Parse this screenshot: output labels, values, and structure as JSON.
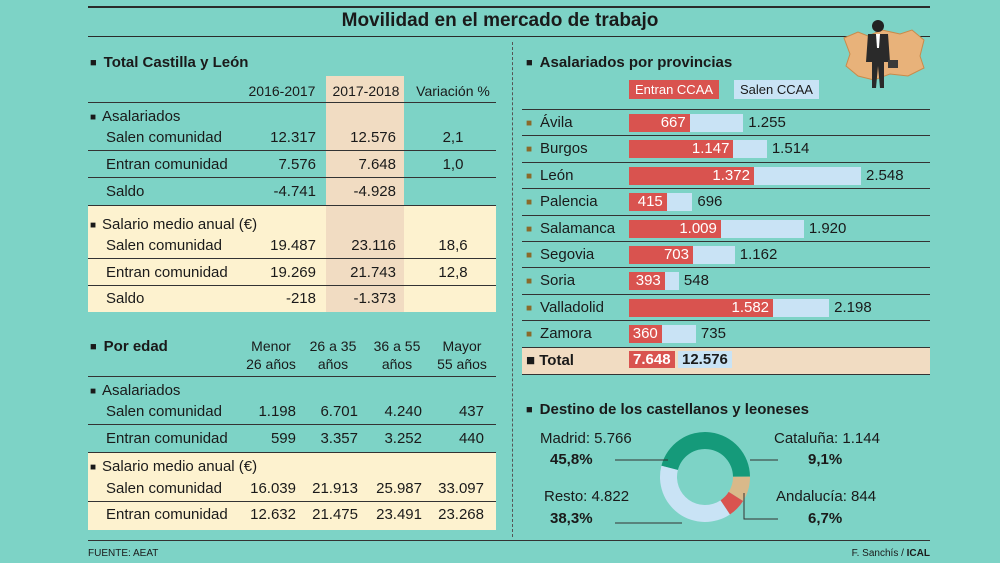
{
  "title": "Movilidad en el mercado de trabajo",
  "left": {
    "total_section": {
      "title": "Total Castilla y León",
      "col_headers": [
        "2016-2017",
        "2017-2018",
        "Variación %"
      ],
      "group1": {
        "label": "Asalariados",
        "rows": [
          {
            "label": "Salen comunidad",
            "v1": "12.317",
            "v2": "12.576",
            "v3": "2,1"
          },
          {
            "label": "Entran comunidad",
            "v1": "7.576",
            "v2": "7.648",
            "v3": "1,0"
          },
          {
            "label": "Saldo",
            "v1": "-4.741",
            "v2": "-4.928",
            "v3": ""
          }
        ]
      },
      "group2": {
        "label": "Salario medio anual (€)",
        "rows": [
          {
            "label": "Salen comunidad",
            "v1": "19.487",
            "v2": "23.116",
            "v3": "18,6"
          },
          {
            "label": "Entran comunidad",
            "v1": "19.269",
            "v2": "21.743",
            "v3": "12,8"
          },
          {
            "label": "Saldo",
            "v1": "-218",
            "v2": "-1.373",
            "v3": ""
          }
        ]
      }
    },
    "edad_section": {
      "title": "Por edad",
      "col_headers": [
        {
          "l1": "Menor",
          "l2": "26 años"
        },
        {
          "l1": "26 a 35",
          "l2": "años"
        },
        {
          "l1": "36 a 55",
          "l2": "años"
        },
        {
          "l1": "Mayor",
          "l2": "55 años"
        }
      ],
      "group1": {
        "label": "Asalariados",
        "rows": [
          {
            "label": "Salen comunidad",
            "v": [
              "1.198",
              "6.701",
              "4.240",
              "437"
            ]
          },
          {
            "label": "Entran comunidad",
            "v": [
              "599",
              "3.357",
              "3.252",
              "440"
            ]
          }
        ]
      },
      "group2": {
        "label": "Salario medio anual (€)",
        "rows": [
          {
            "label": "Salen comunidad",
            "v": [
              "16.039",
              "21.913",
              "25.987",
              "33.097"
            ]
          },
          {
            "label": "Entran comunidad",
            "v": [
              "12.632",
              "21.475",
              "23.491",
              "23.268"
            ]
          }
        ]
      }
    }
  },
  "right": {
    "provincias_title": "Asalariados por provincias",
    "legend_entran": "Entran CCAA",
    "legend_salen": "Salen CCAA",
    "total_label": "Total",
    "total_entran": "7.648",
    "total_salen": "12.576",
    "destino_title": "Destino de los castellanos y leoneses",
    "donut_labels": {
      "madrid": "Madrid: 5.766",
      "madrid_pct": "45,8%",
      "cataluna": "Cataluña: 1.144",
      "cataluna_pct": "9,1%",
      "resto": "Resto: 4.822",
      "resto_pct": "38,3%",
      "andalucia": "Andalucía: 844",
      "andalucia_pct": "6,7%"
    }
  },
  "chart_data": [
    {
      "type": "bar",
      "title": "Asalariados por provincias",
      "categories": [
        "Ávila",
        "Burgos",
        "León",
        "Palencia",
        "Salamanca",
        "Segovia",
        "Soria",
        "Valladolid",
        "Zamora"
      ],
      "series": [
        {
          "name": "Entran CCAA",
          "values": [
            667,
            1147,
            1372,
            415,
            1009,
            703,
            393,
            1582,
            360
          ],
          "labels": [
            "667",
            "1.147",
            "1.372",
            "415",
            "1.009",
            "703",
            "393",
            "1.582",
            "360"
          ],
          "color": "#d9534f"
        },
        {
          "name": "Salen CCAA",
          "values": [
            1255,
            1514,
            2548,
            696,
            1920,
            1162,
            548,
            2198,
            735
          ],
          "labels": [
            "1.255",
            "1.514",
            "2.548",
            "696",
            "1.920",
            "1.162",
            "548",
            "2.198",
            "735"
          ],
          "color": "#c9e3f5"
        }
      ],
      "xlim": [
        0,
        2548
      ],
      "orientation": "horizontal",
      "overlaid": true
    },
    {
      "type": "pie",
      "title": "Destino de los castellanos y leoneses",
      "donut": true,
      "slices": [
        {
          "name": "Madrid",
          "value": 5766,
          "percent": 45.8,
          "color": "#159a7a"
        },
        {
          "name": "Cataluña",
          "value": 1144,
          "percent": 9.1,
          "color": "#d9b98a"
        },
        {
          "name": "Andalucía",
          "value": 844,
          "percent": 6.7,
          "color": "#d9534f"
        },
        {
          "name": "Resto",
          "value": 4822,
          "percent": 38.3,
          "color": "#c9e3f5"
        }
      ]
    }
  ],
  "footer": {
    "source": "FUENTE: AEAT",
    "credit_name": "F. Sanchís / ",
    "credit_agency": "ICAL"
  }
}
